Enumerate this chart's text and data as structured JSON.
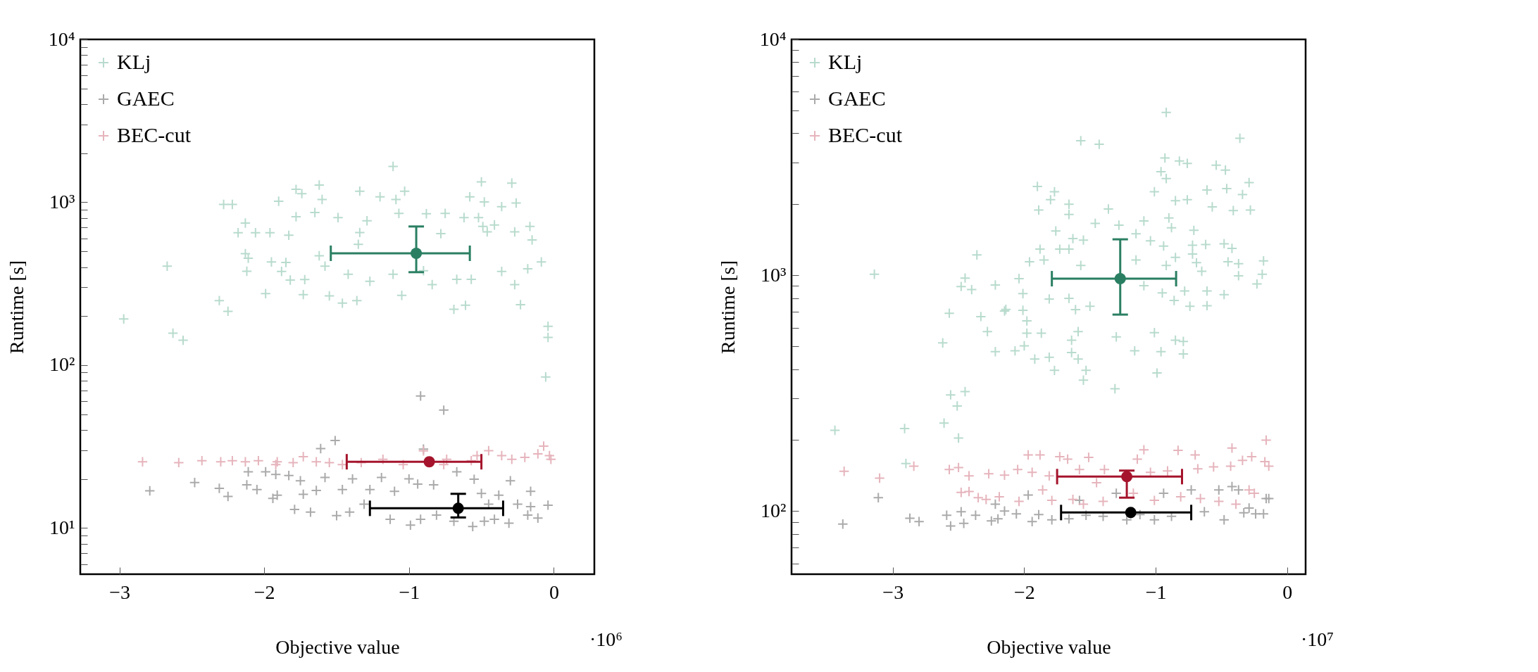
{
  "chart_data": [
    {
      "type": "scatter",
      "xlabel": "Objective value",
      "ylabel": "Runtime [s]",
      "annotations": [
        "·10⁶"
      ],
      "log": "y",
      "legend": "top left",
      "xlim": [
        -3.27,
        0.28
      ],
      "ylim": [
        5.2,
        10000
      ],
      "xticks": [
        -3,
        -2,
        -1,
        0
      ],
      "yticks": [
        {
          "value": 6,
          "label": null
        },
        {
          "value": 7,
          "label": null
        },
        {
          "value": 8,
          "label": null
        },
        {
          "value": 9,
          "label": null
        },
        {
          "value": 10,
          "label": "10¹"
        },
        {
          "value": 20,
          "label": null
        },
        {
          "value": 30,
          "label": null
        },
        {
          "value": 40,
          "label": null
        },
        {
          "value": 50,
          "label": null
        },
        {
          "value": 60,
          "label": null
        },
        {
          "value": 70,
          "label": null
        },
        {
          "value": 80,
          "label": null
        },
        {
          "value": 90,
          "label": null
        },
        {
          "value": 100,
          "label": "10²"
        },
        {
          "value": 200,
          "label": null
        },
        {
          "value": 300,
          "label": null
        },
        {
          "value": 400,
          "label": null
        },
        {
          "value": 500,
          "label": null
        },
        {
          "value": 600,
          "label": null
        },
        {
          "value": 700,
          "label": null
        },
        {
          "value": 800,
          "label": null
        },
        {
          "value": 900,
          "label": null
        },
        {
          "value": 1000,
          "label": "10³"
        },
        {
          "value": 2000,
          "label": null
        },
        {
          "value": 3000,
          "label": null
        },
        {
          "value": 4000,
          "label": null
        },
        {
          "value": 5000,
          "label": null
        },
        {
          "value": 6000,
          "label": null
        },
        {
          "value": 7000,
          "label": null
        },
        {
          "value": 8000,
          "label": null
        },
        {
          "value": 9000,
          "label": null
        },
        {
          "value": 10000,
          "label": "10⁴"
        }
      ],
      "series": [
        {
          "name": "KLj",
          "color": "#b8dbcd",
          "marker": "cross",
          "x": [
            -1.11,
            -2.67,
            -2.28,
            -2.22,
            -1.9,
            -1.78,
            -1.74,
            -1.62,
            -1.6,
            -1.34,
            -1.2,
            -1.09,
            -1.03,
            -0.58,
            -0.5,
            -0.29,
            -0.26,
            -0.48,
            -0.36,
            -2.13,
            -2.18,
            -2.06,
            -1.96,
            -1.83,
            -1.78,
            -1.65,
            -1.49,
            -1.29,
            -1.07,
            -0.88,
            -0.75,
            -0.62,
            -0.52,
            -0.49,
            -0.41,
            -0.165,
            -0.15,
            -0.086,
            -2.13,
            -2.11,
            -1.95,
            -1.85,
            -2.12,
            -1.88,
            -1.82,
            -1.72,
            -1.62,
            -1.58,
            -1.42,
            -1.34,
            -1.35,
            -1.27,
            -1.11,
            -0.9,
            -0.84,
            -0.67,
            -0.57,
            -0.36,
            -0.27,
            -0.18,
            -0.23,
            -1.99,
            -1.73,
            -1.55,
            -1.46,
            -1.36,
            -1.05,
            -0.69,
            -0.61,
            -2.31,
            -0.78,
            -0.46,
            -0.27,
            -2.97,
            -2.63,
            -2.56,
            -2.25,
            -0.04,
            -0.04,
            -0.056
          ],
          "values": [
            1660,
            405,
            970,
            970,
            1015,
            1200,
            1130,
            1275,
            1040,
            1170,
            1080,
            1040,
            1170,
            1080,
            1335,
            1310,
            990,
            1005,
            940,
            745,
            650,
            650,
            650,
            627,
            815,
            865,
            805,
            770,
            855,
            850,
            855,
            805,
            805,
            710,
            725,
            710,
            587,
            430,
            483,
            453,
            430,
            427,
            377,
            376,
            333,
            335,
            469,
            405,
            361,
            652,
            552,
            327,
            361,
            380,
            312,
            336,
            336,
            376,
            312,
            390,
            235,
            275,
            271,
            266,
            240,
            249,
            268,
            220,
            233,
            249,
            641,
            658,
            658,
            192,
            157,
            142,
            214,
            173,
            148,
            84.5
          ]
        },
        {
          "name": "GAEC",
          "color": "#aaaaaa",
          "marker": "cross",
          "x": [
            -0.92,
            -0.76,
            -1.51,
            -1.61,
            -0.9,
            -2.79,
            -2.48,
            -2.31,
            -2.25,
            -2.12,
            -2.11,
            -1.99,
            -1.92,
            -1.83,
            -1.75,
            -1.58,
            -1.39,
            -1.19,
            -1.0,
            -0.67,
            -0.55,
            -0.3,
            -2.05,
            -1.94,
            -1.91,
            -1.73,
            -1.64,
            -1.46,
            -1.27,
            -1.1,
            -0.94,
            -0.83,
            -0.5,
            -0.38,
            -0.16,
            -1.79,
            -1.68,
            -1.5,
            -1.41,
            -1.31,
            -1.13,
            -0.99,
            -0.92,
            -0.81,
            -0.69,
            -0.56,
            -0.48,
            -0.41,
            -0.31,
            -0.25,
            -0.18,
            -0.11,
            -0.04,
            -0.16,
            -0.45
          ],
          "values": [
            64.6,
            52.9,
            34.4,
            30.7,
            30.5,
            16.9,
            19.0,
            17.5,
            15.6,
            18.4,
            22.1,
            22.1,
            21.3,
            21.0,
            19.5,
            20.4,
            20.0,
            20.4,
            20.0,
            22.1,
            19.9,
            19.5,
            17.2,
            15.2,
            15.9,
            16.1,
            17.0,
            17.2,
            17.2,
            16.8,
            18.6,
            18.4,
            16.3,
            15.9,
            16.8,
            13.0,
            12.5,
            11.9,
            12.5,
            14.0,
            11.3,
            10.4,
            11.3,
            12.0,
            11.0,
            10.2,
            11.0,
            11.3,
            10.7,
            14.0,
            12.0,
            11.5,
            13.8,
            13.5,
            14.0
          ]
        },
        {
          "name": "BEC-cut",
          "color": "#e6b4bc",
          "marker": "cross",
          "x": [
            -2.84,
            -2.59,
            -2.43,
            -2.3,
            -2.22,
            -2.13,
            -2.04,
            -1.91,
            -1.8,
            -1.73,
            -1.64,
            -1.55,
            -1.33,
            -1.18,
            -1.04,
            -0.9,
            -0.74,
            -0.57,
            -0.45,
            -0.36,
            -0.29,
            -0.2,
            -0.11,
            -0.07,
            -0.03,
            -0.02,
            -1.46,
            -1.92,
            -0.76,
            -0.53
          ],
          "values": [
            25.5,
            25.2,
            25.9,
            25.5,
            25.9,
            25.5,
            25.9,
            25.5,
            25.2,
            27.4,
            25.5,
            25.2,
            25.2,
            26.4,
            24.5,
            29.7,
            26.4,
            25.9,
            29.8,
            27.8,
            26.4,
            27.1,
            28.5,
            31.8,
            27.8,
            26.4,
            24.5,
            24.5,
            24.5,
            27.8
          ]
        },
        {
          "color": "#2a7f62",
          "marker": "circle",
          "x": [
            -0.95
          ],
          "values": [
            486
          ],
          "errors": [
            [
              372,
              710
            ]
          ],
          "xerrors": [
            [
              -1.54,
              -0.58
            ]
          ]
        },
        {
          "color": "#000000",
          "marker": "circle",
          "x": [
            -0.66
          ],
          "values": [
            13.2
          ],
          "errors": [
            [
              11.6,
              16.2
            ]
          ],
          "xerrors": [
            [
              -1.27,
              -0.35
            ]
          ]
        },
        {
          "color": "#a5142c",
          "marker": "circle",
          "x": [
            -0.86
          ],
          "values": [
            25.5
          ],
          "xerrors": [
            [
              -1.43,
              -0.5
            ]
          ]
        }
      ]
    },
    {
      "type": "scatter",
      "xlabel": "Objective value",
      "ylabel": "Runtime [s]",
      "annotations": [
        "·10⁷"
      ],
      "log": "y",
      "legend": "top left",
      "xlim": [
        -3.77,
        0.14
      ],
      "ylim": [
        54,
        10000
      ],
      "xticks": [
        -3,
        -2,
        -1,
        0
      ],
      "yticks": [
        {
          "value": 60,
          "label": null
        },
        {
          "value": 70,
          "label": null
        },
        {
          "value": 80,
          "label": null
        },
        {
          "value": 90,
          "label": null
        },
        {
          "value": 100,
          "label": "10²"
        },
        {
          "value": 200,
          "label": null
        },
        {
          "value": 300,
          "label": null
        },
        {
          "value": 400,
          "label": null
        },
        {
          "value": 500,
          "label": null
        },
        {
          "value": 600,
          "label": null
        },
        {
          "value": 700,
          "label": null
        },
        {
          "value": 800,
          "label": null
        },
        {
          "value": 900,
          "label": null
        },
        {
          "value": 1000,
          "label": "10³"
        },
        {
          "value": 2000,
          "label": null
        },
        {
          "value": 3000,
          "label": null
        },
        {
          "value": 4000,
          "label": null
        },
        {
          "value": 5000,
          "label": null
        },
        {
          "value": 6000,
          "label": null
        },
        {
          "value": 7000,
          "label": null
        },
        {
          "value": 8000,
          "label": null
        },
        {
          "value": 9000,
          "label": null
        },
        {
          "value": 10000,
          "label": "10⁴"
        }
      ],
      "series": [
        {
          "name": "KLj",
          "color": "#b8dbcd",
          "marker": "cross",
          "x": [
            -0.92,
            -1.57,
            -1.43,
            -0.36,
            -0.93,
            -0.82,
            -0.76,
            -0.96,
            -0.92,
            -0.54,
            -0.47,
            -0.29,
            -1.9,
            -1.77,
            -1.01,
            -0.61,
            -0.46,
            -0.34,
            -0.85,
            -0.76,
            -1.8,
            -1.66,
            -1.89,
            -1.66,
            -1.36,
            -0.57,
            -0.28,
            -0.41,
            -1.09,
            -0.9,
            -1.46,
            -1.28,
            -0.88,
            -0.71,
            -1.76,
            -1.15,
            -1.63,
            -1.55,
            -1.04,
            -0.94,
            -0.72,
            -0.62,
            -0.48,
            -0.42,
            -1.88,
            -1.73,
            -2.36,
            -1.66,
            -1.15,
            -1.85,
            -1.96,
            -1.57,
            -0.92,
            -0.85,
            -0.72,
            -0.69,
            -0.45,
            -0.37,
            -0.18,
            -0.19,
            -0.37,
            -3.14,
            -2.45,
            -2.04,
            -0.65,
            -2.48,
            -2.4,
            -2.22,
            -0.23,
            -1.09,
            -0.78,
            -0.61,
            -0.95,
            -0.48,
            -2.01,
            -1.81,
            -1.66,
            -1.5,
            -0.86,
            -0.74,
            -0.61,
            -2.15,
            -1.61,
            -2.57,
            -2.33,
            -2.14,
            -2.01,
            -1.98,
            -2.28,
            -1.98,
            -1.87,
            -1.59,
            -1.01,
            -0.85,
            -0.79,
            -2.62,
            -2.22,
            -2.07,
            -2.0,
            -1.64,
            -1.3,
            -1.64,
            -1.16,
            -0.96,
            -0.79,
            -1.92,
            -1.81,
            -1.59,
            -1.77,
            -1.53,
            -1.55,
            -0.99,
            -1.31,
            -2.56,
            -2.45,
            -2.51,
            -2.61,
            -2.91,
            -3.44,
            -2.5,
            -2.9
          ],
          "values": [
            4900,
            3720,
            3590,
            3810,
            3140,
            3050,
            2980,
            2750,
            2570,
            2930,
            2790,
            2470,
            2380,
            2260,
            2260,
            2300,
            2330,
            2200,
            2070,
            2090,
            2090,
            2000,
            1890,
            1810,
            1910,
            1950,
            1890,
            1880,
            1700,
            1750,
            1660,
            1630,
            1590,
            1550,
            1540,
            1500,
            1430,
            1410,
            1400,
            1330,
            1340,
            1350,
            1360,
            1300,
            1290,
            1290,
            1220,
            1290,
            1160,
            1160,
            1140,
            1100,
            1100,
            1190,
            1230,
            1130,
            1140,
            1120,
            1150,
            1010,
            995,
            1010,
            973,
            967,
            1040,
            896,
            869,
            909,
            918,
            903,
            857,
            857,
            841,
            828,
            836,
            793,
            798,
            739,
            782,
            739,
            743,
            705,
            715,
            690,
            668,
            716,
            710,
            640,
            577,
            568,
            568,
            577,
            571,
            530,
            524,
            517,
            474,
            478,
            502,
            530,
            548,
            470,
            478,
            474,
            464,
            441,
            449,
            441,
            395,
            395,
            359,
            385,
            330,
            311,
            321,
            279,
            236,
            224,
            220,
            204,
            159
          ]
        },
        {
          "name": "GAEC",
          "color": "#aaaaaa",
          "marker": "cross",
          "x": [
            -3.38,
            -3.11,
            -2.87,
            -2.8,
            -2.59,
            -2.56,
            -2.48,
            -2.46,
            -2.37,
            -2.25,
            -2.2,
            -2.22,
            -2.15,
            -2.06,
            -1.97,
            -1.94,
            -1.89,
            -1.79,
            -1.66,
            -1.58,
            -1.53,
            -1.4,
            -1.3,
            -1.22,
            -1.12,
            -1.01,
            -0.94,
            -0.88,
            -0.73,
            -0.63,
            -0.52,
            -0.48,
            -0.42,
            -0.37,
            -0.33,
            -0.24,
            -0.16,
            -0.14,
            -0.18,
            -0.29
          ],
          "values": [
            88.1,
            114,
            93.3,
            90.2,
            96,
            86.5,
            99.3,
            88.7,
            96,
            90.8,
            92.7,
            107,
            100,
            97.3,
            117,
            90.2,
            96.6,
            91.8,
            92.7,
            111,
            96,
            95,
            119,
            91.8,
            96.6,
            91.8,
            119,
            95,
            123,
            99.3,
            123,
            91.8,
            127,
            123,
            98.3,
            97.3,
            113,
            113,
            97.3,
            103
          ]
        },
        {
          "name": "BEC-cut",
          "color": "#e6b4bc",
          "marker": "cross",
          "x": [
            -3.37,
            -3.1,
            -2.84,
            -2.57,
            -2.5,
            -2.42,
            -2.27,
            -2.15,
            -2.05,
            -1.97,
            -1.88,
            -1.94,
            -1.81,
            -1.73,
            -1.67,
            -1.58,
            -1.51,
            -1.45,
            -1.39,
            -1.14,
            -1.09,
            -1.04,
            -0.91,
            -0.83,
            -0.7,
            -0.68,
            -0.56,
            -0.42,
            -0.34,
            -0.27,
            -0.43,
            -0.16,
            -0.17,
            -0.14,
            -2.48,
            -2.42,
            -2.35,
            -2.29,
            -2.19,
            -2.04,
            -1.86,
            -1.79,
            -1.63,
            -1.55,
            -1.4,
            -1.17,
            -1.01,
            -0.81,
            -0.66,
            -0.52,
            -0.39,
            -0.29,
            -0.25
          ],
          "values": [
            147.5,
            138,
            155,
            150,
            153,
            141,
            144,
            142,
            150,
            173,
            173,
            146,
            141,
            170,
            166,
            150,
            169,
            132,
            150,
            166,
            182,
            146,
            148,
            181,
            173,
            151,
            154,
            185,
            164,
            170,
            155,
            200,
            162,
            155,
            120,
            121,
            114,
            112,
            115,
            110,
            123,
            111,
            112,
            107,
            110,
            119,
            111,
            115,
            113,
            110,
            107,
            123,
            119
          ]
        },
        {
          "color": "#2a7f62",
          "marker": "circle",
          "x": [
            -1.27
          ],
          "values": [
            967
          ],
          "errors": [
            [
              681,
              1420
            ]
          ],
          "xerrors": [
            [
              -1.79,
              -0.845
            ]
          ]
        },
        {
          "color": "#000000",
          "marker": "circle",
          "x": [
            -1.19
          ],
          "values": [
            98.6
          ],
          "xerrors": [
            [
              -1.72,
              -0.73
            ]
          ]
        },
        {
          "color": "#a5142c",
          "marker": "circle",
          "x": [
            -1.22
          ],
          "values": [
            140
          ],
          "errors": [
            [
              114,
              148.5
            ]
          ],
          "xerrors": [
            [
              -1.75,
              -0.8
            ]
          ]
        }
      ]
    }
  ]
}
